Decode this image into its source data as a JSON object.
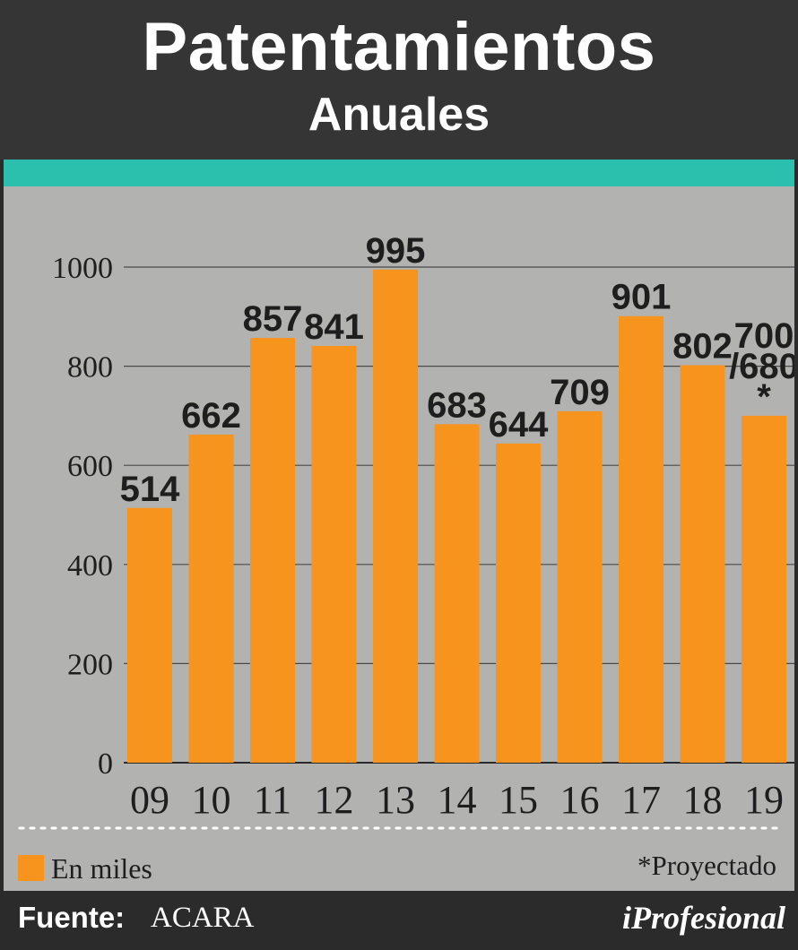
{
  "header": {
    "title": "Patentamientos",
    "subtitle": "Anuales"
  },
  "chart_data": {
    "type": "bar",
    "categories": [
      "09",
      "10",
      "11",
      "12",
      "13",
      "14",
      "15",
      "16",
      "17",
      "18",
      "19"
    ],
    "values": [
      514,
      662,
      857,
      841,
      995,
      683,
      644,
      709,
      901,
      802,
      700
    ],
    "value_labels": [
      "514",
      "662",
      "857",
      "841",
      "995",
      "683",
      "644",
      "709",
      "901",
      "802",
      "700/680*"
    ],
    "value_label_lines": [
      [
        "514"
      ],
      [
        "662"
      ],
      [
        "857"
      ],
      [
        "841"
      ],
      [
        "995"
      ],
      [
        "683"
      ],
      [
        "644"
      ],
      [
        "709"
      ],
      [
        "901"
      ],
      [
        "802"
      ],
      [
        "700",
        "/680",
        "*"
      ]
    ],
    "ylim": [
      0,
      1000
    ],
    "y_ticks": [
      "0",
      "200",
      "400",
      "600",
      "800",
      "1000"
    ],
    "grid": true,
    "bar_color": "#f7941e",
    "legend": {
      "label": "En miles",
      "placement": "bottom-left",
      "color": "#f7941e"
    },
    "note": "*Proyectado"
  },
  "footer": {
    "source_label": "Fuente:",
    "source_value": "ACARA",
    "brand": "iProfesional"
  },
  "colors": {
    "header_bg": "#353535",
    "accent_teal": "#2bbfae",
    "panel_bg": "#b2b2b1",
    "bar": "#f7941e",
    "footer_bg": "#2b2b2b"
  }
}
